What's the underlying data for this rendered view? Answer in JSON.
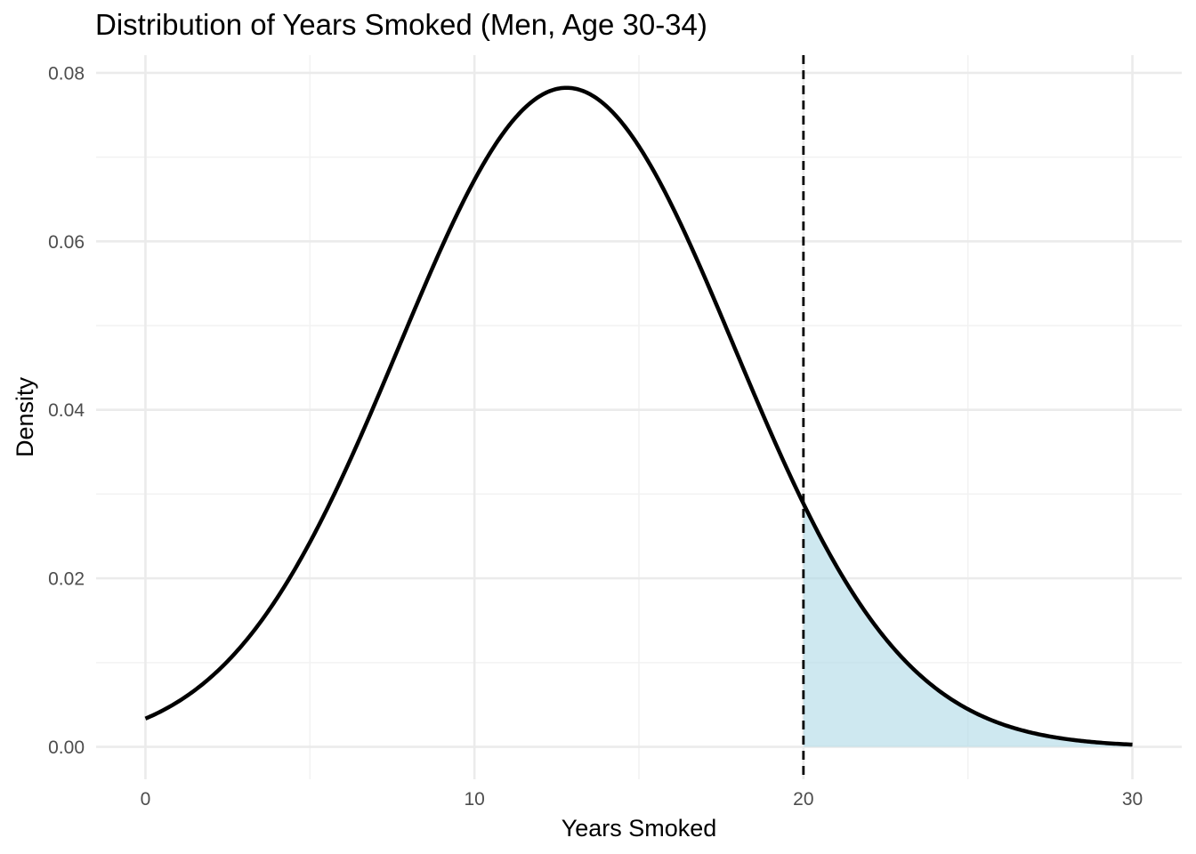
{
  "chart_data": {
    "type": "area",
    "title": "Distribution of Years Smoked (Men, Age 30-34)",
    "xlabel": "Years Smoked",
    "ylabel": "Density",
    "xlim": [
      0,
      30
    ],
    "ylim": [
      0,
      0.08
    ],
    "x_ticks": [
      0,
      10,
      20,
      30
    ],
    "x_tick_labels": [
      "0",
      "10",
      "20",
      "30"
    ],
    "y_ticks": [
      0,
      0.02,
      0.04,
      0.06,
      0.08
    ],
    "y_tick_labels": [
      "0.00",
      "0.02",
      "0.04",
      "0.06",
      "0.08"
    ],
    "grid": true,
    "legend": "none",
    "series": [
      {
        "kind": "normal_density_curve",
        "mean": 12.8,
        "sd": 5.1,
        "x_range": [
          0,
          30
        ],
        "color": "#000000"
      }
    ],
    "reference_line": {
      "x": 20,
      "style": "dashed",
      "color": "#000000"
    },
    "shaded_region": {
      "x_from": 20,
      "x_to": 30,
      "color": "#add8e6"
    }
  }
}
